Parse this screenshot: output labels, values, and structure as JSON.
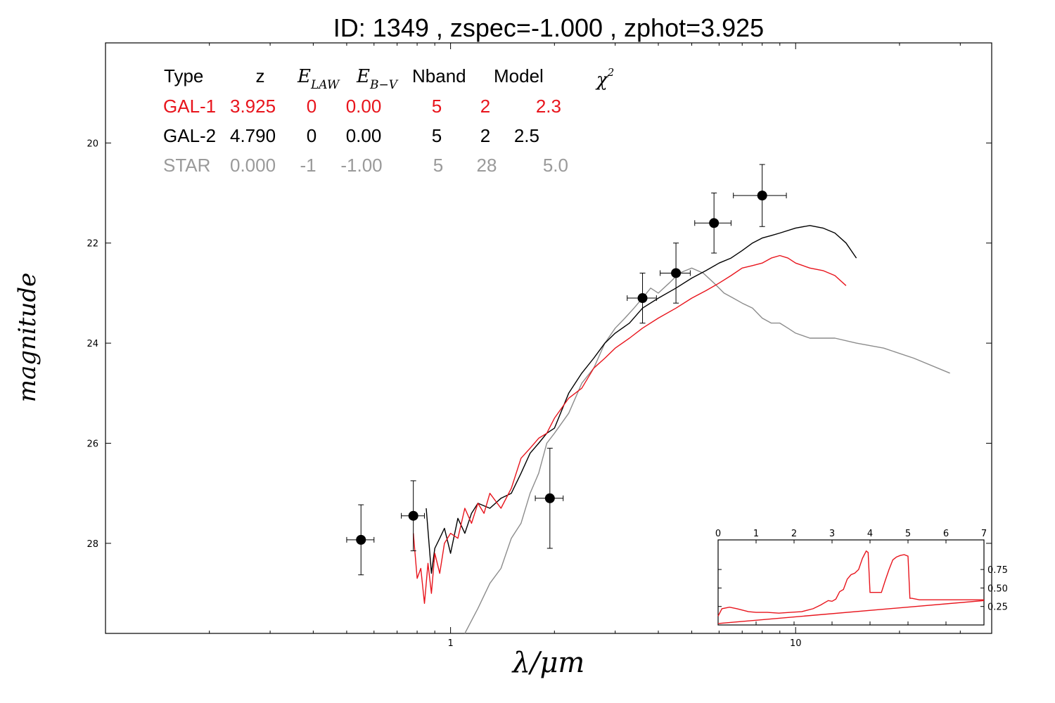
{
  "title": "ID:  1349  , zspec=-1.000 , zphot=3.925",
  "colors": {
    "gal1": "#e8141c",
    "gal2": "#000000",
    "star": "#8c8c8c",
    "axes": "#000000"
  },
  "table": {
    "headers": {
      "type": "Type",
      "z": "z",
      "elaw_base": "E",
      "elaw_sub": "LAW",
      "ebv_base": "E",
      "ebv_sub": "B−V",
      "nband": "Nband",
      "model": "Model",
      "chi_base": "χ",
      "chi_sup": "2"
    },
    "rows": [
      {
        "type": "GAL-1",
        "z": "3.925",
        "elaw": "0",
        "ebv": "0.00",
        "nband": "5",
        "model": "2",
        "chi2": "2.3"
      },
      {
        "type": "GAL-2",
        "z": "4.790",
        "elaw": "0",
        "ebv": "0.00",
        "nband": "5",
        "model": "2",
        "chi2": "2.5"
      },
      {
        "type": "STAR",
        "z": "0.000",
        "elaw": "-1",
        "ebv": "-1.00",
        "nband": "5",
        "model": "28",
        "chi2": "5.0"
      }
    ]
  },
  "chart_data": [
    {
      "type": "line",
      "title": "ID:  1349  , zspec=-1.000 , zphot=3.925",
      "xlabel": "λ/μm",
      "ylabel": "magnitude",
      "xscale": "log",
      "xlim": [
        0.1,
        37
      ],
      "ylim": [
        29.8,
        18
      ],
      "y_inverted": true,
      "x_ticks": [
        1,
        10
      ],
      "x_tick_labels": [
        "1",
        "10"
      ],
      "y_ticks": [
        20,
        22,
        24,
        26,
        28
      ],
      "y_tick_labels": [
        "20",
        "22",
        "24",
        "26",
        "28"
      ],
      "series": [
        {
          "name": "GAL-1",
          "color": "#e8141c",
          "x": [
            0.78,
            0.8,
            0.82,
            0.84,
            0.86,
            0.88,
            0.9,
            0.93,
            0.96,
            1.0,
            1.05,
            1.1,
            1.15,
            1.2,
            1.25,
            1.3,
            1.4,
            1.5,
            1.6,
            1.7,
            1.8,
            1.9,
            2.0,
            2.2,
            2.4,
            2.6,
            2.8,
            3.0,
            3.3,
            3.6,
            4.0,
            4.5,
            5.0,
            5.5,
            6.0,
            6.5,
            7.0,
            7.5,
            8.0,
            8.5,
            9.0,
            9.5,
            10.0,
            11.0,
            12.0,
            13.0,
            14.0
          ],
          "y": [
            27.8,
            28.7,
            28.5,
            29.2,
            28.4,
            29.0,
            28.2,
            28.6,
            28.0,
            27.8,
            27.9,
            27.3,
            27.6,
            27.2,
            27.4,
            27.0,
            27.3,
            26.9,
            26.3,
            26.1,
            25.9,
            25.8,
            25.5,
            25.1,
            24.9,
            24.5,
            24.3,
            24.1,
            23.9,
            23.7,
            23.5,
            23.3,
            23.1,
            22.95,
            22.8,
            22.65,
            22.5,
            22.45,
            22.4,
            22.3,
            22.25,
            22.3,
            22.4,
            22.5,
            22.55,
            22.65,
            22.85
          ]
        },
        {
          "name": "GAL-2",
          "color": "#000000",
          "x": [
            0.85,
            0.88,
            0.9,
            0.93,
            0.96,
            1.0,
            1.05,
            1.1,
            1.15,
            1.2,
            1.3,
            1.4,
            1.5,
            1.6,
            1.7,
            1.8,
            1.9,
            2.0,
            2.2,
            2.4,
            2.6,
            2.8,
            3.0,
            3.3,
            3.6,
            4.0,
            4.5,
            5.0,
            5.5,
            6.0,
            6.5,
            7.0,
            7.5,
            8.0,
            8.5,
            9.0,
            10.0,
            11.0,
            12.0,
            13.0,
            14.0,
            15.0
          ],
          "y": [
            27.3,
            28.6,
            28.1,
            27.9,
            27.7,
            28.2,
            27.5,
            27.8,
            27.4,
            27.2,
            27.3,
            27.1,
            27.0,
            26.6,
            26.2,
            26.0,
            25.8,
            25.7,
            25.0,
            24.6,
            24.3,
            24.0,
            23.8,
            23.6,
            23.3,
            23.1,
            22.9,
            22.7,
            22.55,
            22.4,
            22.3,
            22.15,
            22.0,
            21.9,
            21.85,
            21.8,
            21.7,
            21.65,
            21.7,
            21.8,
            22.0,
            22.3
          ]
        },
        {
          "name": "STAR",
          "color": "#8c8c8c",
          "x": [
            1.1,
            1.2,
            1.3,
            1.4,
            1.5,
            1.6,
            1.7,
            1.8,
            1.9,
            2.0,
            2.2,
            2.4,
            2.6,
            2.8,
            3.0,
            3.2,
            3.4,
            3.6,
            3.8,
            4.0,
            4.3,
            4.6,
            5.0,
            5.4,
            5.8,
            6.2,
            6.6,
            7.0,
            7.5,
            8.0,
            8.5,
            9.0,
            9.5,
            10.0,
            11.0,
            12.0,
            13.0,
            15.0,
            18.0,
            22.0,
            28.0
          ],
          "y": [
            29.8,
            29.3,
            28.8,
            28.5,
            27.9,
            27.6,
            27.0,
            26.6,
            26.0,
            25.8,
            25.4,
            24.8,
            24.5,
            24.0,
            23.7,
            23.5,
            23.3,
            23.1,
            22.9,
            23.0,
            22.8,
            22.6,
            22.5,
            22.6,
            22.8,
            23.0,
            23.1,
            23.2,
            23.3,
            23.5,
            23.6,
            23.6,
            23.7,
            23.8,
            23.9,
            23.9,
            23.9,
            24.0,
            24.1,
            24.3,
            24.6
          ]
        }
      ],
      "photometry": [
        {
          "x": 0.55,
          "y": 27.93,
          "xerr": 0.05,
          "yerr": 0.7
        },
        {
          "x": 0.78,
          "y": 27.45,
          "xerr": 0.06,
          "yerr": 0.7
        },
        {
          "x": 1.94,
          "y": 27.1,
          "xerr": 0.18,
          "yerr": 1.0
        },
        {
          "x": 3.6,
          "y": 23.1,
          "xerr": 0.35,
          "yerr": 0.5
        },
        {
          "x": 4.5,
          "y": 22.6,
          "xerr": 0.45,
          "yerr": 0.6
        },
        {
          "x": 5.8,
          "y": 21.6,
          "xerr": 0.7,
          "yerr": 0.6
        },
        {
          "x": 8.0,
          "y": 21.05,
          "xerr": 1.4,
          "yerr": 0.62
        }
      ]
    },
    {
      "type": "line",
      "title": "",
      "xlabel": "",
      "ylabel": "",
      "xlim": [
        0,
        7
      ],
      "ylim": [
        0,
        1.15
      ],
      "x_ticks": [
        0,
        1,
        2,
        3,
        4,
        5,
        6,
        7
      ],
      "x_tick_labels": [
        "0",
        "1",
        "2",
        "3",
        "4",
        "5",
        "6",
        "7"
      ],
      "y_ticks": [
        0.25,
        0.5,
        0.75
      ],
      "y_tick_labels": [
        "0.25",
        "0.50",
        "0.75"
      ],
      "series": [
        {
          "color": "#e8141c",
          "x": [
            0,
            0.1,
            0.3,
            0.5,
            0.8,
            1.0,
            1.3,
            1.6,
            1.9,
            2.2,
            2.5,
            2.7,
            2.9,
            3.0,
            3.1,
            3.2,
            3.3,
            3.4,
            3.5,
            3.6,
            3.7,
            3.8,
            3.85,
            3.9,
            3.95,
            4.0,
            4.3,
            4.4,
            4.5,
            4.6,
            4.7,
            4.8,
            4.9,
            5.0,
            5.05,
            5.1,
            5.3,
            5.5,
            6.0,
            6.5,
            7.0
          ],
          "y": [
            0.12,
            0.22,
            0.24,
            0.22,
            0.18,
            0.17,
            0.17,
            0.16,
            0.17,
            0.18,
            0.22,
            0.27,
            0.33,
            0.32,
            0.35,
            0.45,
            0.48,
            0.62,
            0.68,
            0.7,
            0.75,
            0.9,
            0.95,
            1.0,
            0.98,
            0.44,
            0.44,
            0.6,
            0.75,
            0.88,
            0.92,
            0.94,
            0.95,
            0.93,
            0.36,
            0.36,
            0.34,
            0.34,
            0.34,
            0.34,
            0.34
          ]
        },
        {
          "color": "#e8141c",
          "x": [
            0,
            7
          ],
          "y": [
            0.02,
            0.33
          ]
        }
      ]
    }
  ]
}
